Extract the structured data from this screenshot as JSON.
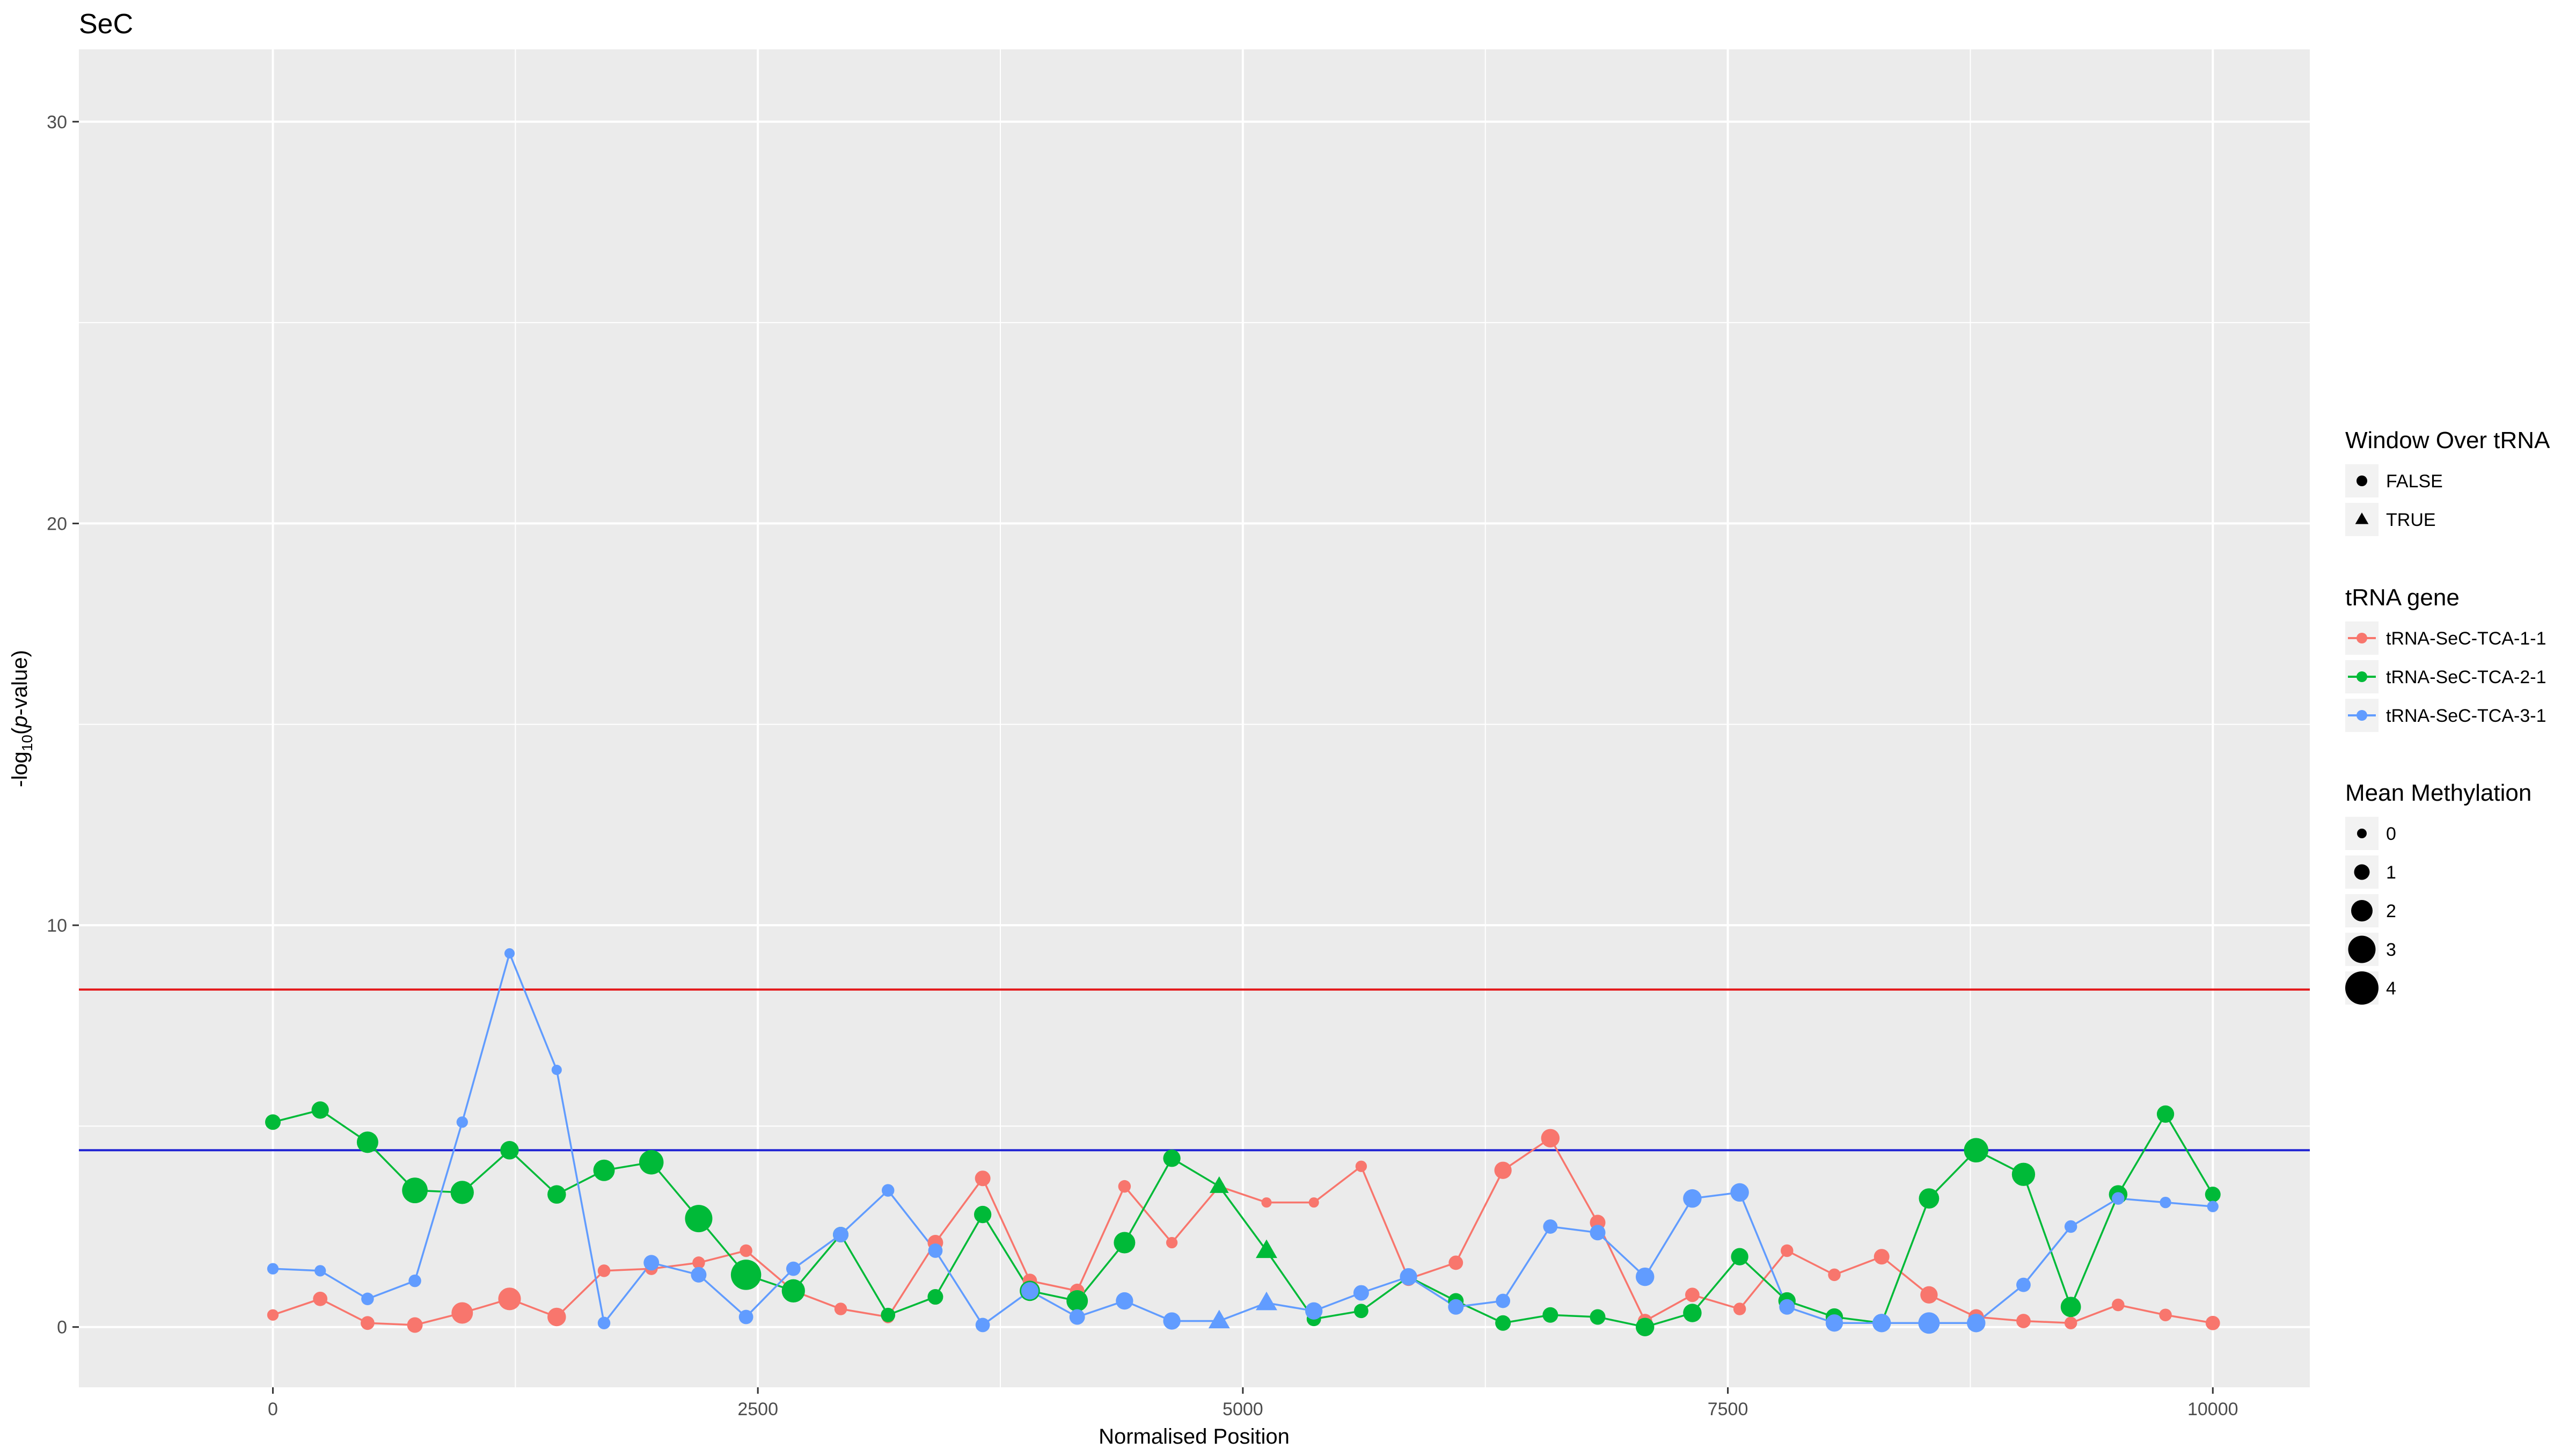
{
  "chart_data": {
    "type": "line",
    "title": "SeC",
    "xlabel": "Normalised Position",
    "ylabel_parts": [
      "-log",
      "10",
      "(",
      "p",
      "-value)"
    ],
    "xlim": [
      -1000,
      10500
    ],
    "ylim": [
      -1.5,
      31.8
    ],
    "x_ticks": [
      0,
      2500,
      5000,
      7500,
      10000
    ],
    "y_ticks": [
      0,
      10,
      20,
      30
    ],
    "grid": true,
    "hlines": [
      {
        "y": 8.4,
        "color": "#E41A1C"
      },
      {
        "y": 4.4,
        "color": "#1F23D3"
      }
    ],
    "series": [
      {
        "name": "tRNA-SeC-TCA-1-1",
        "color": "#F8766D",
        "x": [
          0,
          244,
          488,
          732,
          976,
          1220,
          1463,
          1707,
          1951,
          2195,
          2439,
          2683,
          2927,
          3171,
          3415,
          3659,
          3902,
          4146,
          4390,
          4634,
          4878,
          5122,
          5366,
          5610,
          5854,
          6098,
          6341,
          6585,
          6829,
          7073,
          7317,
          7561,
          7805,
          8049,
          8293,
          8537,
          8780,
          9024,
          9268,
          9512,
          9756,
          10000
        ],
        "y": [
          0.3,
          0.7,
          0.1,
          0.05,
          0.35,
          0.7,
          0.25,
          1.4,
          1.45,
          1.6,
          1.9,
          0.9,
          0.45,
          0.25,
          2.1,
          3.7,
          1.15,
          0.9,
          3.5,
          2.1,
          3.5,
          3.1,
          3.1,
          4.0,
          1.2,
          1.6,
          3.9,
          4.7,
          2.6,
          0.15,
          0.8,
          0.45,
          1.9,
          1.3,
          1.75,
          0.8,
          0.25,
          0.15,
          0.1,
          0.55,
          0.3,
          0.1
        ],
        "methylation": [
          0.3,
          0.8,
          0.7,
          1.0,
          2.0,
          2.2,
          1.5,
          0.5,
          0.5,
          0.5,
          0.5,
          0.8,
          0.5,
          0.5,
          1.0,
          1.0,
          0.8,
          0.8,
          0.5,
          0.3,
          0.1,
          0.1,
          0.1,
          0.3,
          0.8,
          0.8,
          1.3,
          1.5,
          1.0,
          0.8,
          0.8,
          0.5,
          0.5,
          0.5,
          1.0,
          1.3,
          1.0,
          0.8,
          0.5,
          0.5,
          0.5,
          0.8
        ],
        "over_trna": [
          false,
          false,
          false,
          false,
          false,
          false,
          false,
          false,
          false,
          false,
          false,
          false,
          false,
          false,
          false,
          false,
          false,
          false,
          false,
          false,
          false,
          false,
          false,
          false,
          false,
          false,
          false,
          false,
          false,
          false,
          false,
          false,
          false,
          false,
          false,
          false,
          false,
          false,
          false,
          false,
          false,
          false
        ]
      },
      {
        "name": "tRNA-SeC-TCA-2-1",
        "color": "#00BA38",
        "x": [
          0,
          244,
          488,
          732,
          976,
          1220,
          1463,
          1707,
          1951,
          2195,
          2439,
          2683,
          2927,
          3171,
          3415,
          3659,
          3902,
          4146,
          4390,
          4634,
          4878,
          5122,
          5366,
          5610,
          5854,
          6098,
          6341,
          6585,
          6829,
          7073,
          7317,
          7561,
          7805,
          8049,
          8293,
          8537,
          8780,
          9024,
          9268,
          9512,
          9756,
          10000
        ],
        "y": [
          5.1,
          5.4,
          4.6,
          3.4,
          3.35,
          4.4,
          3.3,
          3.9,
          4.1,
          2.7,
          1.3,
          0.9,
          2.3,
          0.3,
          0.75,
          2.8,
          0.9,
          0.65,
          2.1,
          4.2,
          3.5,
          1.9,
          0.2,
          0.4,
          1.25,
          0.65,
          0.1,
          0.3,
          0.25,
          0.0,
          0.35,
          1.75,
          0.65,
          0.25,
          0.1,
          3.2,
          4.4,
          3.8,
          0.5,
          3.3,
          5.3,
          3.3
        ],
        "methylation": [
          1.0,
          1.3,
          2.0,
          2.7,
          2.3,
          1.5,
          1.5,
          2.0,
          2.5,
          3.0,
          3.5,
          2.3,
          1.0,
          0.8,
          1.0,
          1.3,
          1.8,
          2.0,
          2.0,
          1.3,
          1.0,
          1.3,
          0.8,
          0.8,
          1.0,
          1.0,
          1.0,
          1.0,
          1.0,
          1.5,
          1.5,
          1.3,
          1.3,
          1.3,
          1.0,
          1.8,
          2.5,
          2.3,
          1.8,
          1.5,
          1.3,
          1.0
        ],
        "over_trna": [
          false,
          false,
          false,
          false,
          false,
          false,
          false,
          false,
          false,
          false,
          false,
          false,
          false,
          false,
          false,
          false,
          false,
          false,
          false,
          false,
          true,
          true,
          false,
          false,
          false,
          false,
          false,
          false,
          false,
          false,
          false,
          false,
          false,
          false,
          false,
          false,
          false,
          false,
          false,
          false,
          false,
          false
        ]
      },
      {
        "name": "tRNA-SeC-TCA-3-1",
        "color": "#619CFF",
        "x": [
          0,
          244,
          488,
          732,
          976,
          1220,
          1463,
          1707,
          1951,
          2195,
          2439,
          2683,
          2927,
          3171,
          3415,
          3659,
          3902,
          4146,
          4390,
          4634,
          4878,
          5122,
          5366,
          5610,
          5854,
          6098,
          6341,
          6585,
          6829,
          7073,
          7317,
          7561,
          7805,
          8049,
          8293,
          8537,
          8780,
          9024,
          9268,
          9512,
          9756,
          10000
        ],
        "y": [
          1.45,
          1.4,
          0.7,
          1.15,
          5.1,
          9.3,
          6.4,
          0.1,
          1.6,
          1.3,
          0.25,
          1.45,
          2.3,
          3.4,
          1.9,
          0.05,
          0.9,
          0.25,
          0.65,
          0.15,
          0.15,
          0.6,
          0.4,
          0.85,
          1.25,
          0.5,
          0.65,
          2.5,
          2.35,
          1.25,
          3.2,
          3.35,
          0.5,
          0.1,
          0.1,
          0.1,
          0.1,
          1.05,
          2.5,
          3.2,
          3.1,
          3.0
        ],
        "methylation": [
          0.3,
          0.3,
          0.5,
          0.5,
          0.3,
          0.1,
          0.1,
          0.5,
          1.0,
          1.0,
          0.8,
          0.8,
          1.0,
          0.5,
          0.8,
          0.8,
          1.3,
          1.0,
          1.3,
          1.3,
          1.3,
          1.3,
          1.3,
          1.0,
          1.3,
          1.0,
          0.8,
          0.8,
          1.0,
          1.5,
          1.5,
          1.5,
          1.0,
          1.3,
          1.5,
          2.0,
          1.5,
          0.8,
          0.5,
          0.5,
          0.3,
          0.3
        ],
        "over_trna": [
          false,
          false,
          false,
          false,
          false,
          false,
          false,
          false,
          false,
          false,
          false,
          false,
          false,
          false,
          false,
          false,
          false,
          false,
          false,
          false,
          true,
          true,
          false,
          false,
          false,
          false,
          false,
          false,
          false,
          false,
          false,
          false,
          false,
          false,
          false,
          false,
          false,
          false,
          false,
          false,
          false,
          false
        ]
      }
    ],
    "legend": {
      "placement": "right",
      "shape": {
        "title": "Window Over tRNA",
        "entries": [
          {
            "label": "FALSE",
            "shape": "circle"
          },
          {
            "label": "TRUE",
            "shape": "triangle"
          }
        ]
      },
      "color": {
        "title": "tRNA gene",
        "entries": [
          {
            "label": "tRNA-SeC-TCA-1-1",
            "color": "#F8766D"
          },
          {
            "label": "tRNA-SeC-TCA-2-1",
            "color": "#00BA38"
          },
          {
            "label": "tRNA-SeC-TCA-3-1",
            "color": "#619CFF"
          }
        ]
      },
      "size": {
        "title": "Mean Methylation",
        "entries": [
          {
            "label": "0",
            "value": 0
          },
          {
            "label": "1",
            "value": 1
          },
          {
            "label": "2",
            "value": 2
          },
          {
            "label": "3",
            "value": 3
          },
          {
            "label": "4",
            "value": 4
          }
        ]
      }
    }
  }
}
